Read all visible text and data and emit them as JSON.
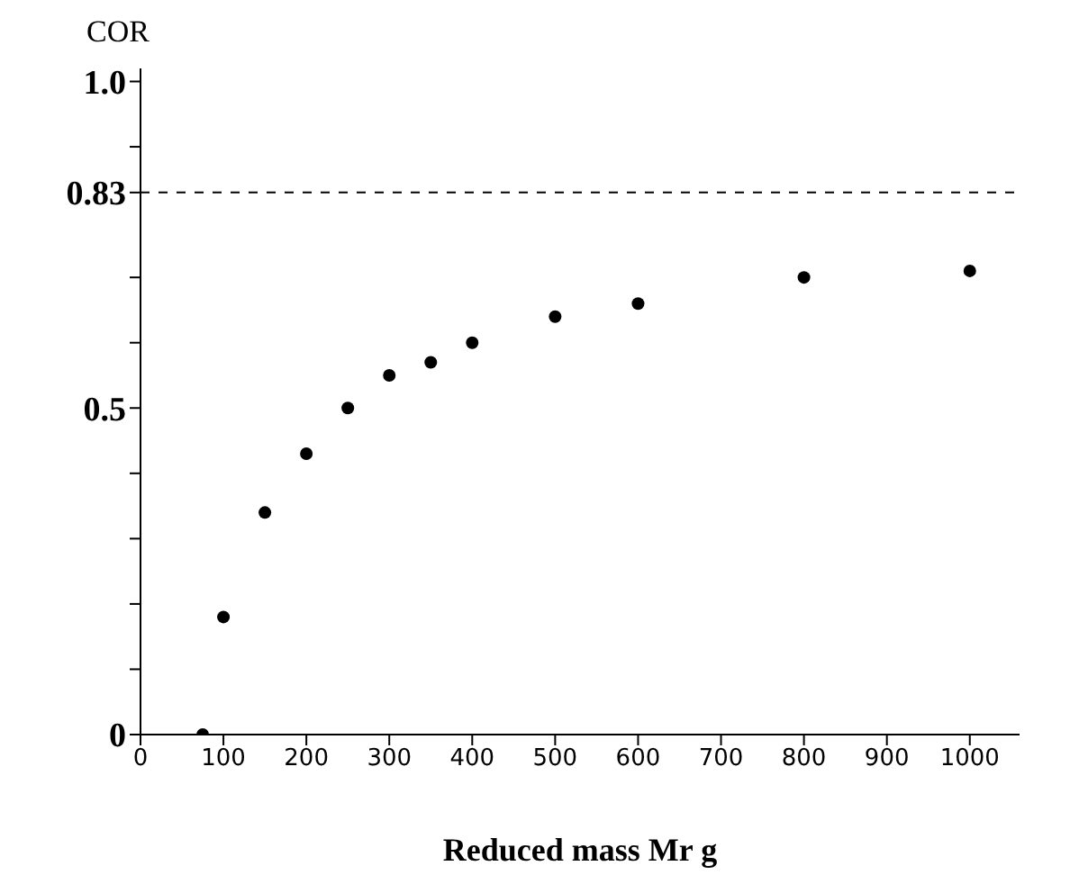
{
  "chart_data": {
    "type": "scatter",
    "xlabel": "Reduced mass   Mr  g",
    "ylabel": "COR",
    "x": [
      75,
      100,
      150,
      200,
      250,
      300,
      350,
      400,
      500,
      600,
      800,
      1000
    ],
    "values": [
      0,
      0.18,
      0.34,
      0.43,
      0.5,
      0.55,
      0.57,
      0.6,
      0.64,
      0.66,
      0.7,
      0.71
    ],
    "color": "#000000",
    "marker": "circle",
    "xlim": [
      0,
      1060
    ],
    "xticks": [
      0,
      100,
      200,
      300,
      400,
      500,
      600,
      700,
      800,
      900,
      1000
    ],
    "ylim": [
      0,
      1.02
    ],
    "yticks": [
      0,
      {
        "value": 0.1,
        "label": null
      },
      {
        "value": 0.2,
        "label": null
      },
      {
        "value": 0.3,
        "label": null
      },
      {
        "value": 0.4,
        "label": null
      },
      0.5,
      {
        "value": 0.6,
        "label": null
      },
      {
        "value": 0.7,
        "label": null
      },
      0.83,
      {
        "value": 0.9,
        "label": null
      },
      {
        "value": 1,
        "label": "1.0"
      }
    ],
    "ref_lines": [
      {
        "axis": "y",
        "value": 0.83,
        "line_style": "dashed",
        "color": "#000000"
      }
    ],
    "grid": false,
    "legend": false
  }
}
